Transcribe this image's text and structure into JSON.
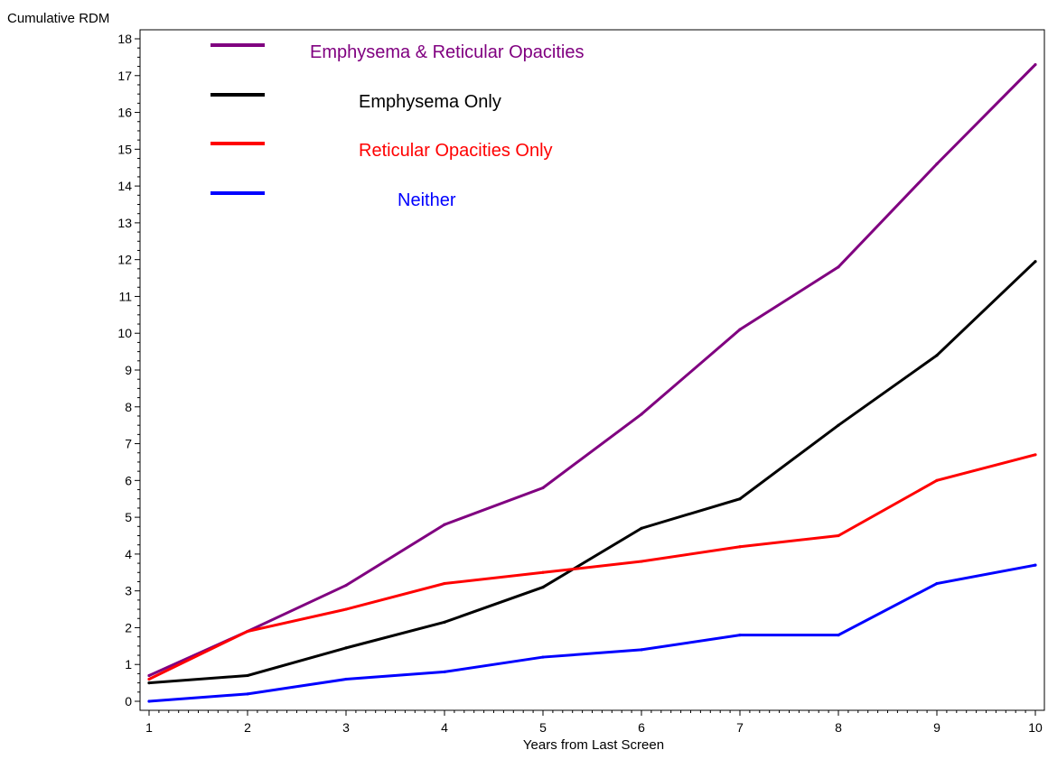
{
  "chart_data": {
    "type": "line",
    "title": "",
    "xlabel": "Years from Last Screen",
    "ylabel": "Cumulative RDM",
    "x": [
      1,
      2,
      3,
      4,
      5,
      6,
      7,
      8,
      9,
      10
    ],
    "xlim": [
      1,
      10
    ],
    "ylim": [
      0,
      18
    ],
    "x_ticks": [
      "1",
      "2",
      "3",
      "4",
      "5",
      "6",
      "7",
      "8",
      "9",
      "10"
    ],
    "y_ticks": [
      "0",
      "1",
      "2",
      "3",
      "4",
      "5",
      "6",
      "7",
      "8",
      "9",
      "10",
      "11",
      "12",
      "13",
      "14",
      "15",
      "16",
      "17",
      "18"
    ],
    "grid": false,
    "legend_placement": "top-left",
    "series": [
      {
        "name": "Emphysema & Reticular Opacities",
        "color": "#800080",
        "values": [
          0.7,
          1.9,
          3.15,
          4.8,
          5.8,
          7.8,
          10.1,
          11.8,
          14.6,
          17.3
        ]
      },
      {
        "name": "Emphysema Only",
        "color": "#000000",
        "values": [
          0.5,
          0.7,
          1.45,
          2.15,
          3.1,
          4.7,
          5.5,
          7.5,
          9.4,
          11.95
        ]
      },
      {
        "name": "Reticular Opacities Only",
        "color": "#ff0000",
        "values": [
          0.6,
          1.9,
          2.5,
          3.2,
          3.5,
          3.8,
          4.2,
          4.5,
          6.0,
          6.7
        ]
      },
      {
        "name": "Neither",
        "color": "#0000ff",
        "values": [
          0.0,
          0.2,
          0.6,
          0.8,
          1.2,
          1.4,
          1.8,
          1.8,
          3.2,
          3.7
        ]
      }
    ]
  }
}
